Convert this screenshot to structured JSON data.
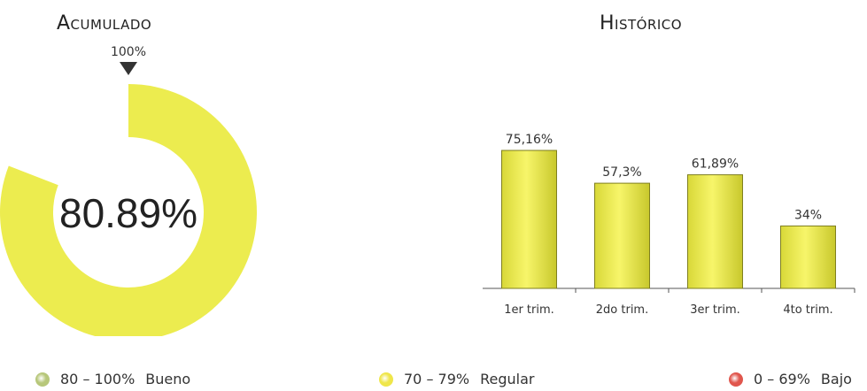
{
  "chart_data": [
    {
      "type": "gauge",
      "title": "Acumulado",
      "value": 80.89,
      "value_label": "80.89%",
      "target_label": "100%",
      "max": 100,
      "color": "#ecec4f"
    },
    {
      "type": "bar",
      "title": "Histórico",
      "categories": [
        "1er trim.",
        "2do trim.",
        "3er trim.",
        "4to trim."
      ],
      "values": [
        75.16,
        57.3,
        61.89,
        34
      ],
      "labels": [
        "75,16%",
        "57,3%",
        "61,89%",
        "34%"
      ],
      "ylim": [
        0,
        80
      ],
      "color": "#e6e64a"
    }
  ],
  "legend": [
    {
      "range": "80 – 100%",
      "label": "Bueno",
      "color": "#b7c77a"
    },
    {
      "range": "70 – 79%",
      "label": "Regular",
      "color": "#efe64a"
    },
    {
      "range": "0 – 69%",
      "label": "Bajo",
      "color": "#e0564d"
    }
  ]
}
